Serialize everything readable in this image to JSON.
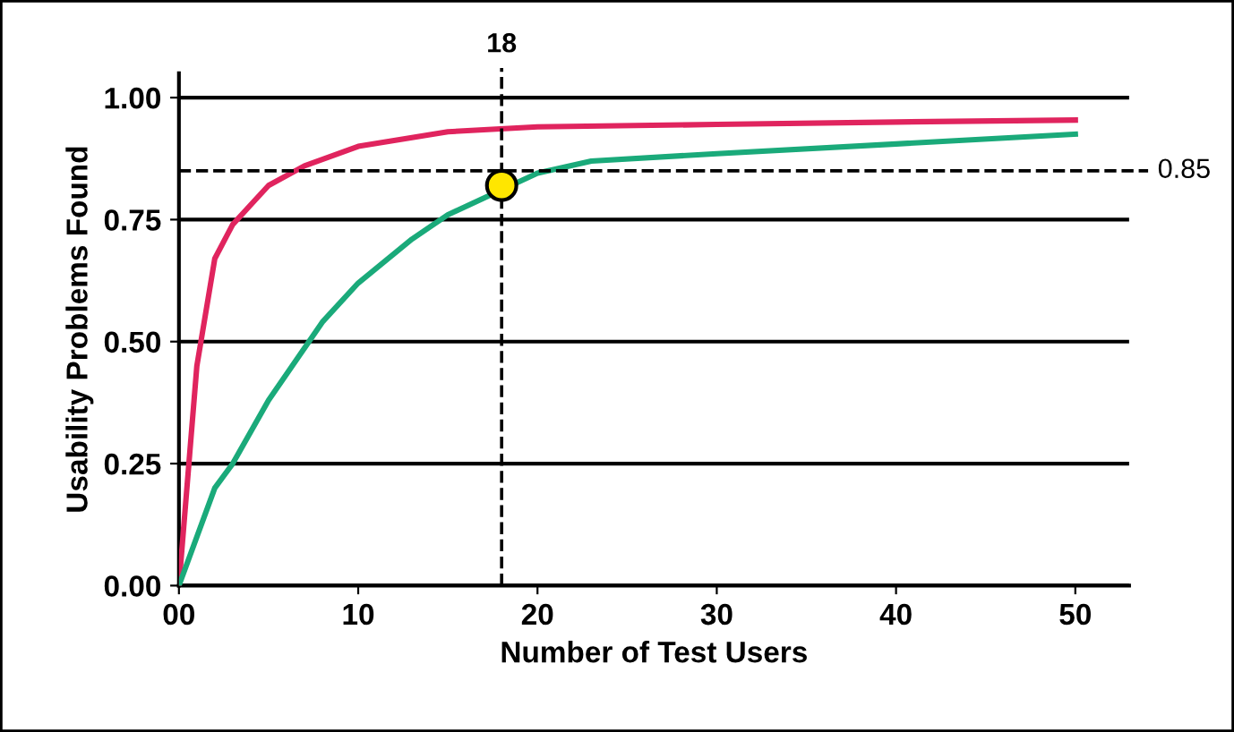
{
  "chart_data": {
    "type": "line",
    "xlabel": "Number of Test Users",
    "ylabel": "Usability Problems Found",
    "xlim": [
      0,
      53
    ],
    "xticks": [
      {
        "value": 0,
        "label": "00"
      },
      10,
      20,
      30,
      40,
      50
    ],
    "ylim": [
      0,
      1.05
    ],
    "yticks": [
      {
        "value": 0,
        "label": "0.00"
      },
      0.25,
      {
        "value": 0.5,
        "label": "0.50"
      },
      0.75,
      {
        "value": 1,
        "label": "1.00"
      }
    ],
    "grid": "y",
    "marker": "none",
    "line_style": "solid",
    "series": [
      {
        "color": "#e0245e",
        "x": [
          0,
          1,
          2,
          3,
          4,
          5,
          7,
          10,
          15,
          20,
          30,
          40,
          50
        ],
        "values": [
          0,
          0.45,
          0.67,
          0.74,
          0.78,
          0.82,
          0.86,
          0.9,
          0.93,
          0.94,
          0.945,
          0.95,
          0.954
        ]
      },
      {
        "color": "#1aaa7a",
        "x": [
          0,
          2,
          3,
          5,
          8,
          10,
          13,
          15,
          20,
          23,
          30,
          40,
          50
        ],
        "values": [
          0,
          0.2,
          0.25,
          0.38,
          0.54,
          0.62,
          0.71,
          0.76,
          0.845,
          0.87,
          0.885,
          0.905,
          0.925
        ]
      },
      {
        "type": "scatter",
        "marker": "circle",
        "color": "#ffe600",
        "x": [
          18
        ],
        "values": [
          0.82
        ]
      }
    ],
    "ref_lines": [
      {
        "axis": "x",
        "value": 18,
        "label": "18",
        "line_style": "dashed"
      },
      {
        "axis": "y",
        "value": 0.85,
        "label": "0.85",
        "line_style": "dashed"
      }
    ]
  }
}
